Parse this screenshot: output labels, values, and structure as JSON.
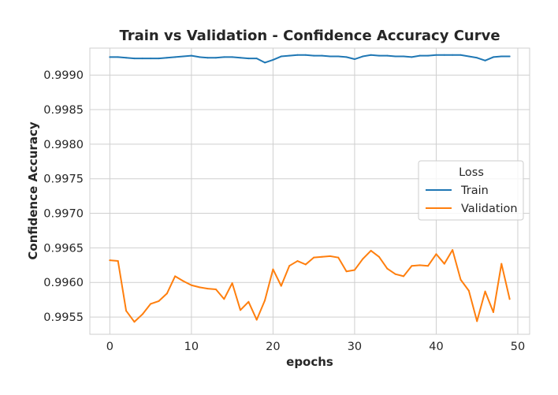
{
  "chart_data": {
    "type": "line",
    "title": "Train vs Validation - Confidence Accuracy Curve",
    "xlabel": "epochs",
    "ylabel": "Confidence Accuracy",
    "xlim": [
      -2.45,
      51.45
    ],
    "ylim": [
      0.99525,
      0.99939
    ],
    "x_ticks": [
      0,
      10,
      20,
      30,
      40,
      50
    ],
    "y_ticks": [
      0.9955,
      0.996,
      0.9965,
      0.997,
      0.9975,
      0.998,
      0.9985,
      0.999
    ],
    "y_tick_labels": [
      "0.9955",
      "0.9960",
      "0.9965",
      "0.9970",
      "0.9975",
      "0.9980",
      "0.9985",
      "0.9990"
    ],
    "grid": true,
    "legend": {
      "title": "Loss",
      "placement": "center-right"
    },
    "x": [
      0,
      1,
      2,
      3,
      4,
      5,
      6,
      7,
      8,
      9,
      10,
      11,
      12,
      13,
      14,
      15,
      16,
      17,
      18,
      19,
      20,
      21,
      22,
      23,
      24,
      25,
      26,
      27,
      28,
      29,
      30,
      31,
      32,
      33,
      34,
      35,
      36,
      37,
      38,
      39,
      40,
      41,
      42,
      43,
      44,
      45,
      46,
      47,
      48,
      49
    ],
    "series": [
      {
        "name": "Train",
        "color": "#1f77b4",
        "values": [
          0.99926,
          0.99926,
          0.99925,
          0.99924,
          0.99924,
          0.99924,
          0.99924,
          0.99925,
          0.99926,
          0.99927,
          0.99928,
          0.99926,
          0.99925,
          0.99925,
          0.99926,
          0.99926,
          0.99925,
          0.99924,
          0.99924,
          0.99918,
          0.99922,
          0.99927,
          0.99928,
          0.99929,
          0.99929,
          0.99928,
          0.99928,
          0.99927,
          0.99927,
          0.99926,
          0.99923,
          0.99927,
          0.99929,
          0.99928,
          0.99928,
          0.99927,
          0.99927,
          0.99926,
          0.99928,
          0.99928,
          0.99929,
          0.99929,
          0.99929,
          0.99929,
          0.99927,
          0.99925,
          0.99921,
          0.99926,
          0.99927,
          0.99927
        ]
      },
      {
        "name": "Validation",
        "color": "#ff7f0e",
        "values": [
          0.99632,
          0.99631,
          0.99559,
          0.99543,
          0.99554,
          0.99569,
          0.99573,
          0.99584,
          0.99609,
          0.99602,
          0.99596,
          0.99593,
          0.99591,
          0.9959,
          0.99576,
          0.99599,
          0.9956,
          0.99572,
          0.99546,
          0.99574,
          0.99619,
          0.99595,
          0.99624,
          0.99631,
          0.99626,
          0.99636,
          0.99637,
          0.99638,
          0.99636,
          0.99616,
          0.99618,
          0.99634,
          0.99646,
          0.99637,
          0.9962,
          0.99612,
          0.99609,
          0.99624,
          0.99625,
          0.99624,
          0.99641,
          0.99627,
          0.99647,
          0.99604,
          0.99588,
          0.99544,
          0.99587,
          0.99557,
          0.99627,
          0.99576
        ]
      }
    ]
  }
}
